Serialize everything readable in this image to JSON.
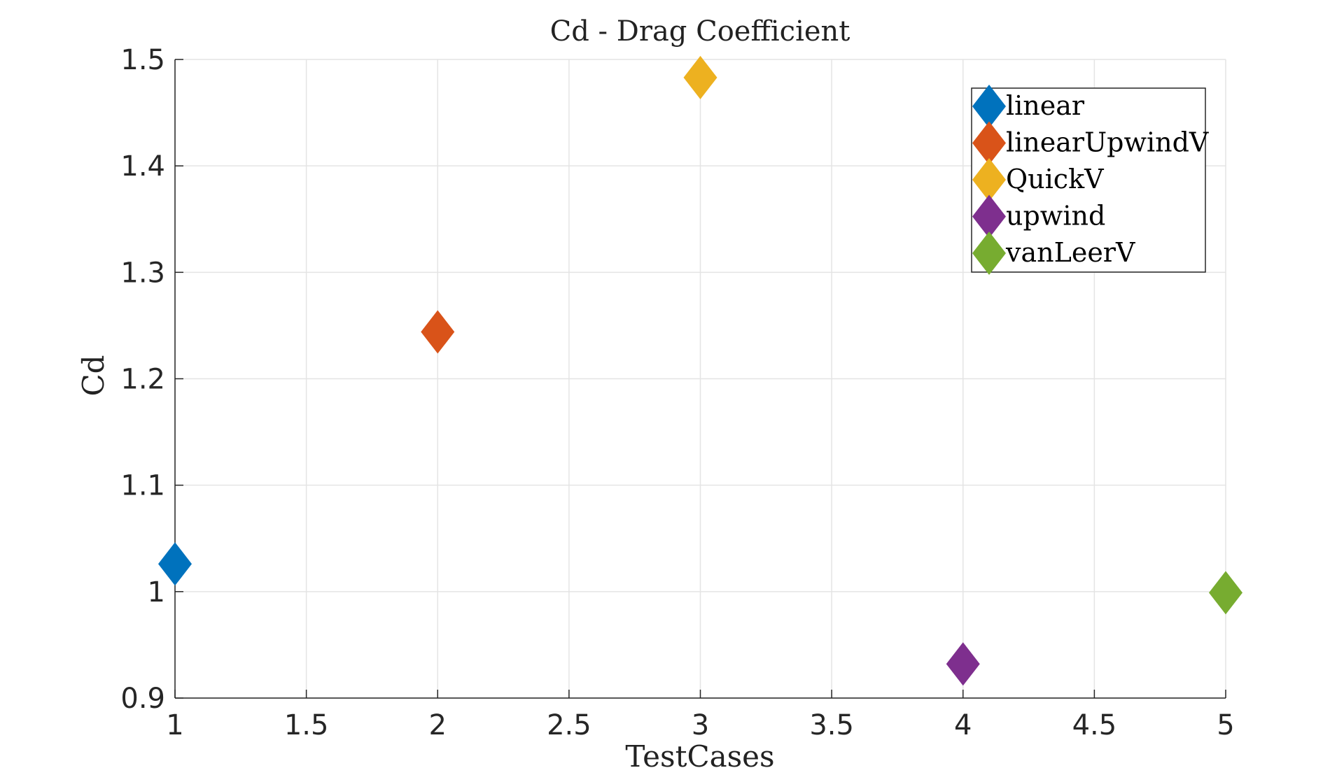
{
  "chart_data": {
    "type": "scatter",
    "title": "Cd - Drag Coefficient",
    "xlabel": "TestCases",
    "ylabel": "Cd",
    "xlim": [
      1,
      5
    ],
    "ylim": [
      0.9,
      1.5
    ],
    "xticks": [
      "1",
      "1.5",
      "2",
      "2.5",
      "3",
      "3.5",
      "4",
      "4.5",
      "5"
    ],
    "yticks": [
      "0.9",
      "1",
      "1.1",
      "1.2",
      "1.3",
      "1.4",
      "1.5"
    ],
    "grid": true,
    "legend_position": "top-right",
    "marker": "diamond",
    "series": [
      {
        "name": "linear",
        "x": 1,
        "y": 1.026,
        "color": "#0072BD"
      },
      {
        "name": "linearUpwindV",
        "x": 2,
        "y": 1.244,
        "color": "#D95319"
      },
      {
        "name": "QuickV",
        "x": 3,
        "y": 1.483,
        "color": "#EDB120"
      },
      {
        "name": "upwind",
        "x": 4,
        "y": 0.932,
        "color": "#7E2F8E"
      },
      {
        "name": "vanLeerV",
        "x": 5,
        "y": 0.999,
        "color": "#77AC30"
      }
    ]
  }
}
